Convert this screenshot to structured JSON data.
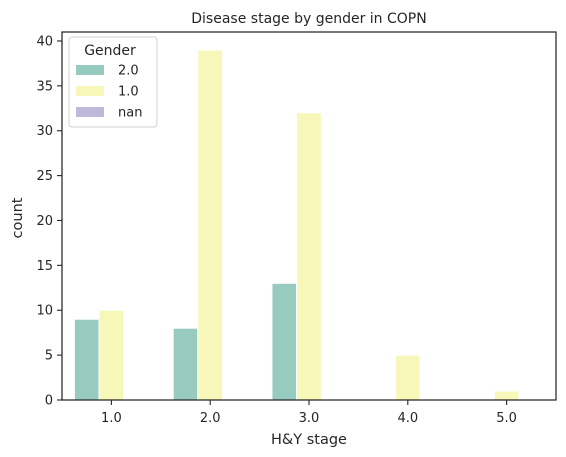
{
  "chart_data": {
    "type": "bar",
    "title": "Disease stage by gender in COPN",
    "xlabel": "H&Y stage",
    "ylabel": "count",
    "categories": [
      "1.0",
      "2.0",
      "3.0",
      "4.0",
      "5.0"
    ],
    "series": [
      {
        "name": "2.0",
        "values": [
          9,
          8,
          13,
          0,
          0
        ],
        "color": "#98cbc0"
      },
      {
        "name": "1.0",
        "values": [
          10,
          39,
          32,
          5,
          1
        ],
        "color": "#f7f7ba"
      },
      {
        "name": "nan",
        "values": [
          0,
          0,
          0,
          0,
          0
        ],
        "color": "#bdb9d8"
      }
    ],
    "yticks": [
      0,
      5,
      10,
      15,
      20,
      25,
      30,
      35,
      40
    ],
    "ylim": [
      0,
      41
    ],
    "grid": false,
    "legend": {
      "title": "Gender",
      "placement": "top-left"
    }
  }
}
